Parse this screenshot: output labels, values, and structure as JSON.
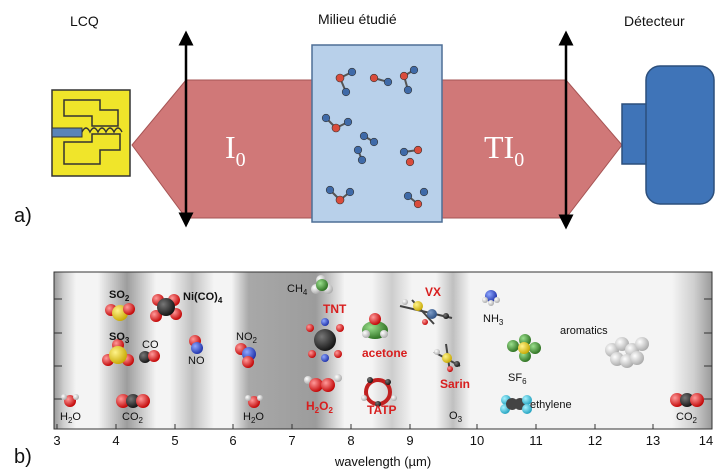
{
  "panel_a": {
    "tag": "a)",
    "source_label": "LCQ",
    "medium_label": "Milieu étudié",
    "detector_label": "Détecteur",
    "beam_in": {
      "main": "I",
      "sub": "0"
    },
    "beam_out": {
      "main": "TI",
      "sub": "0"
    },
    "colors": {
      "beam": "#d07878",
      "medium": "#b8d0ea",
      "detector": "#3f74b8",
      "chip": "#f0e52a"
    }
  },
  "panel_b": {
    "tag": "b)",
    "axis_title": "wavelength (µm)",
    "x_ticks": [
      "3",
      "4",
      "5",
      "6",
      "7",
      "8",
      "9",
      "10",
      "11",
      "12",
      "13",
      "14"
    ],
    "molecules": {
      "so2": {
        "main": "SO",
        "sub": "2"
      },
      "so3": {
        "main": "SO",
        "sub": "3"
      },
      "nico4": {
        "main": "Ni(CO)",
        "sub": "4"
      },
      "co": "CO",
      "no": "NO",
      "no2": {
        "main": "NO",
        "sub": "2"
      },
      "h2o_left": {
        "main": "H",
        "sub": "2",
        "tail": "O"
      },
      "co2_left": {
        "main": "CO",
        "sub": "2"
      },
      "h2o_mid": {
        "main": "H",
        "sub": "2",
        "tail": "O"
      },
      "ch4": {
        "main": "CH",
        "sub": "4"
      },
      "tnt": "TNT",
      "acetone": "acetone",
      "h2o2": {
        "main": "H",
        "sub": "2",
        "mid": "O",
        "sub2": "2"
      },
      "tatp": "TATP",
      "vx": "VX",
      "sarin": "Sarin",
      "o3": {
        "main": "O",
        "sub": "3"
      },
      "nh3": {
        "main": "NH",
        "sub": "3"
      },
      "sf6": {
        "main": "SF",
        "sub": "6"
      },
      "ethylene": "ethylene",
      "aromatics": "aromatics",
      "co2_right": {
        "main": "CO",
        "sub": "2"
      }
    }
  }
}
